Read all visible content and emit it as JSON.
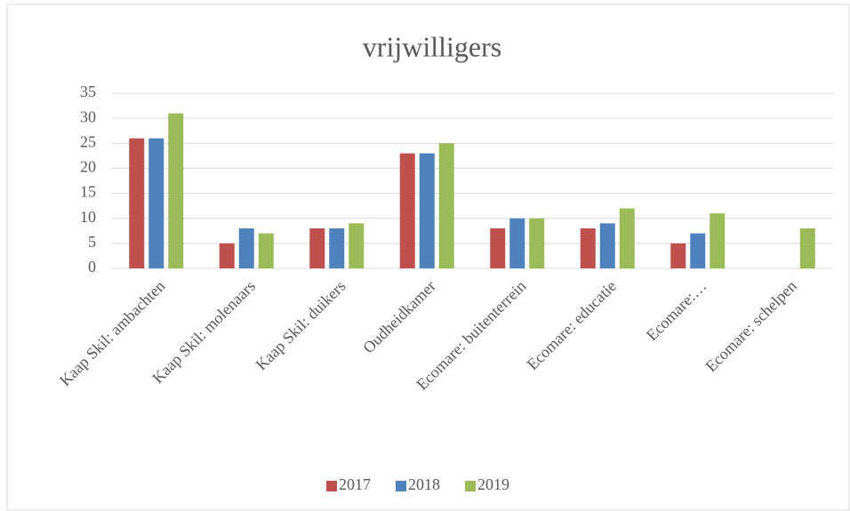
{
  "chart_data": {
    "type": "bar",
    "title": "vrijwilligers",
    "categories": [
      "Kaap Skil: ambachten",
      "Kaap Skil: molenaars",
      "Kaap Skil: duikers",
      "Oudheidkamer",
      "Ecomare: buitenterrein",
      "Ecomare: educatie",
      "Ecomare:…",
      "Ecomare: schelpen"
    ],
    "series": [
      {
        "name": "2017",
        "color": "#c0504d",
        "values": [
          26,
          5,
          8,
          23,
          8,
          8,
          5,
          null
        ]
      },
      {
        "name": "2018",
        "color": "#4f81bd",
        "values": [
          26,
          8,
          8,
          23,
          10,
          9,
          7,
          null
        ]
      },
      {
        "name": "2019",
        "color": "#9bbb59",
        "values": [
          31,
          7,
          9,
          25,
          10,
          12,
          11,
          8
        ]
      }
    ],
    "ylim": [
      0,
      35
    ],
    "yticks": [
      0,
      5,
      10,
      15,
      20,
      25,
      30,
      35
    ],
    "grid": true,
    "legend": "bottom"
  }
}
